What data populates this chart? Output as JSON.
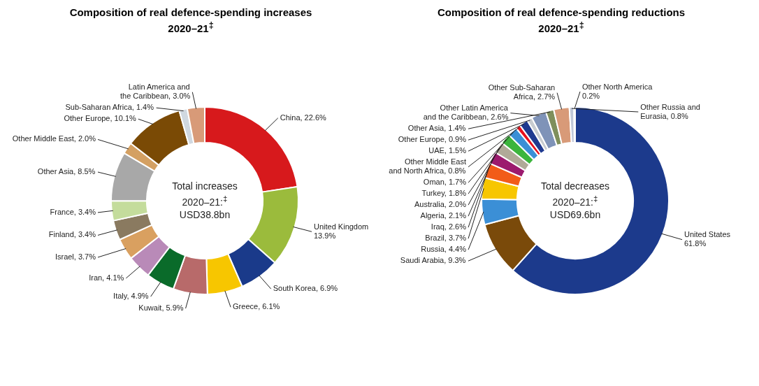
{
  "chart_data": [
    {
      "type": "donut",
      "title": "Composition of real defence-spending increases\n2020–21$^{‡}$",
      "categories": [
        "China",
        "United Kingdom",
        "South Korea",
        "Greece",
        "Kuwait",
        "Italy",
        "Iran",
        "Israel",
        "Finland",
        "France",
        "Other Asia",
        "Other Middle East",
        "Other Europe",
        "Sub-Saharan Africa",
        "Latin America and the Caribbean"
      ],
      "values": [
        22.6,
        13.9,
        6.9,
        6.1,
        5.9,
        4.9,
        4.1,
        3.7,
        3.4,
        3.4,
        8.5,
        2.0,
        10.1,
        1.4,
        3.0
      ],
      "colors": [
        "#d7191c",
        "#9bbb3c",
        "#1a3a8a",
        "#f7c600",
        "#b86a6a",
        "#0a6b2a",
        "#b98ab8",
        "#d9a060",
        "#8a7a60",
        "#c4dc9c",
        "#a8a8a8",
        "#d4a062",
        "#7a4a05",
        "#d0d8e0",
        "#d89a78"
      ],
      "value_labels": [
        "22.6%",
        "13.9%",
        "6.9%",
        "6.1%",
        "5.9%",
        "4.9%",
        "4.1%",
        "3.7%",
        "3.4%",
        "3.4%",
        "8.5%",
        "2.0%",
        "10.1%",
        "1.4%",
        "3.0%"
      ],
      "annotations": [
        "Total increases\n2020–21:$^{‡}$\nUSD38.8bn"
      ]
    },
    {
      "type": "donut",
      "title": "Composition of real defence-spending reductions\n2020–21$^{‡}$",
      "categories": [
        "United States",
        "Saudi Arabia",
        "Russia",
        "Brazil",
        "Iraq",
        "Algeria",
        "Australia",
        "Turkey",
        "Oman",
        "Other Middle East and North Africa",
        "UAE",
        "Other Europe",
        "Other Latin America and the Caribbean",
        "Other Asia",
        "Other Sub-Saharan Africa",
        "Other Russia and Eurasia",
        "Other North America"
      ],
      "values": [
        61.8,
        9.3,
        4.4,
        3.7,
        2.6,
        2.1,
        2.0,
        1.8,
        1.7,
        0.8,
        1.5,
        0.9,
        2.6,
        1.4,
        2.7,
        0.8,
        0.2
      ],
      "colors": [
        "#1c3a8c",
        "#7a4a0a",
        "#3b8fd6",
        "#f7c600",
        "#f25c19",
        "#9c1a6e",
        "#b0aa98",
        "#3cb53c",
        "#3a8fd6",
        "#e8101c",
        "#1f3a90",
        "#c8ccd0",
        "#7f93b8",
        "#7f8f5c",
        "#d89a78",
        "#c0c8d8",
        "#d8dce8"
      ],
      "value_labels": [
        "61.8%",
        "9.3%",
        "4.4%",
        "3.7%",
        "2.6%",
        "2.1%",
        "2.0%",
        "1.8%",
        "1.7%",
        "0.8%",
        "1.5%",
        "0.9%",
        "2.6%",
        "1.4%",
        "2.7%",
        "0.8%",
        "0.2%"
      ],
      "annotations": [
        "Total decreases\n2020–21:$^{‡}$\nUSD69.6bn"
      ]
    }
  ]
}
